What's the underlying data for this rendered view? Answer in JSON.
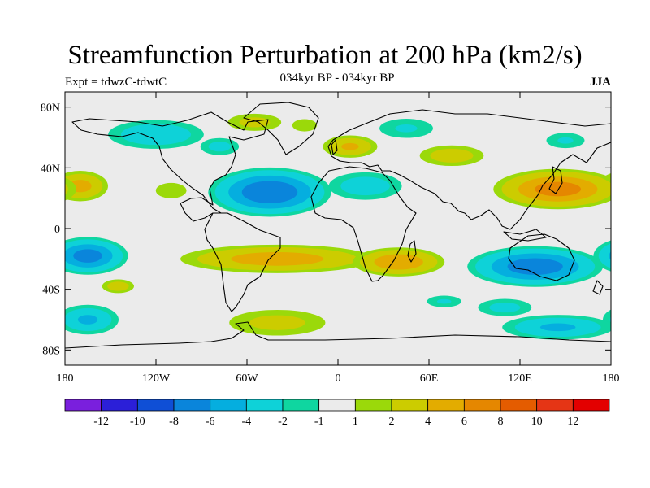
{
  "title": "Streamfunction Perturbation at 200 hPa (km2/s)",
  "expt_label": "Expt = tdwzC-tdwtC",
  "subtitle": "034kyr BP - 034kyr BP",
  "season": "JJA",
  "chart_data": {
    "type": "heatmap",
    "projection": "cylindrical-equidistant world map with coastlines",
    "xlim": [
      -180,
      180
    ],
    "ylim": [
      -90,
      90
    ],
    "x_ticks": [
      {
        "value": -180,
        "label": "180"
      },
      {
        "value": -120,
        "label": "120W"
      },
      {
        "value": -60,
        "label": "60W"
      },
      {
        "value": 0,
        "label": "0"
      },
      {
        "value": 60,
        "label": "60E"
      },
      {
        "value": 120,
        "label": "120E"
      },
      {
        "value": 180,
        "label": "180"
      }
    ],
    "y_ticks": [
      {
        "value": 80,
        "label": "80N"
      },
      {
        "value": 40,
        "label": "40N"
      },
      {
        "value": 0,
        "label": "0"
      },
      {
        "value": -40,
        "label": "40S"
      },
      {
        "value": -80,
        "label": "80S"
      }
    ],
    "colorbar": {
      "bins": [
        {
          "color": "#7a1fdd"
        },
        {
          "color": "#2b1fd8"
        },
        {
          "color": "#0f4fd6"
        },
        {
          "color": "#0a85db"
        },
        {
          "color": "#05aedf"
        },
        {
          "color": "#0ed2d8"
        },
        {
          "color": "#0fd6a0"
        },
        {
          "color": "#ebebeb"
        },
        {
          "color": "#9bd90a"
        },
        {
          "color": "#cccc00"
        },
        {
          "color": "#e3ac00"
        },
        {
          "color": "#e58700"
        },
        {
          "color": "#e45c00"
        },
        {
          "color": "#e53515"
        },
        {
          "color": "#e30000"
        }
      ],
      "labels": [
        "-12",
        "-10",
        "-8",
        "-6",
        "-4",
        "-2",
        "-1",
        "1",
        "2",
        "4",
        "6",
        "8",
        "10",
        "12"
      ]
    },
    "anomalies": [
      {
        "lon": -120,
        "lat": 62,
        "value": -3.5,
        "rlon": 40,
        "rlat": 12
      },
      {
        "lon": -78,
        "lat": 54,
        "value": -2.5,
        "rlon": 18,
        "rlat": 8
      },
      {
        "lon": -55,
        "lat": 70,
        "value": 2.5,
        "rlon": 25,
        "rlat": 8
      },
      {
        "lon": -22,
        "lat": 68,
        "value": 1.5,
        "rlon": 16,
        "rlat": 8
      },
      {
        "lon": 8,
        "lat": 54,
        "value": 4,
        "rlon": 22,
        "rlat": 9
      },
      {
        "lon": 45,
        "lat": 66,
        "value": -2,
        "rlon": 28,
        "rlat": 10
      },
      {
        "lon": 75,
        "lat": 48,
        "value": 3,
        "rlon": 28,
        "rlat": 9
      },
      {
        "lon": 150,
        "lat": 58,
        "value": -2,
        "rlon": 20,
        "rlat": 8
      },
      {
        "lon": -45,
        "lat": 24,
        "value": -7.5,
        "rlon": 45,
        "rlat": 18
      },
      {
        "lon": 18,
        "lat": 28,
        "value": -3,
        "rlon": 32,
        "rlat": 12
      },
      {
        "lon": -170,
        "lat": 28,
        "value": 4.5,
        "rlon": 22,
        "rlat": 12
      },
      {
        "lon": -110,
        "lat": 25,
        "value": 1.5,
        "rlon": 20,
        "rlat": 10
      },
      {
        "lon": 145,
        "lat": 26,
        "value": 6.5,
        "rlon": 48,
        "rlat": 15
      },
      {
        "lon": -40,
        "lat": -20,
        "value": 5,
        "rlon": 75,
        "rlat": 11
      },
      {
        "lon": 40,
        "lat": -22,
        "value": 5.5,
        "rlon": 35,
        "rlat": 11
      },
      {
        "lon": -165,
        "lat": -18,
        "value": -6.5,
        "rlon": 30,
        "rlat": 14
      },
      {
        "lon": 130,
        "lat": -25,
        "value": -7,
        "rlon": 50,
        "rlat": 15
      },
      {
        "lon": -145,
        "lat": -38,
        "value": 3,
        "rlon": 14,
        "rlat": 6
      },
      {
        "lon": -165,
        "lat": -60,
        "value": -4,
        "rlon": 25,
        "rlat": 12
      },
      {
        "lon": -40,
        "lat": -62,
        "value": 2.5,
        "rlon": 45,
        "rlat": 12
      },
      {
        "lon": 145,
        "lat": -65,
        "value": -4,
        "rlon": 45,
        "rlat": 10
      },
      {
        "lon": 110,
        "lat": -52,
        "value": -2.5,
        "rlon": 25,
        "rlat": 8
      },
      {
        "lon": 70,
        "lat": -48,
        "value": -2,
        "rlon": 18,
        "rlat": 6
      }
    ]
  }
}
